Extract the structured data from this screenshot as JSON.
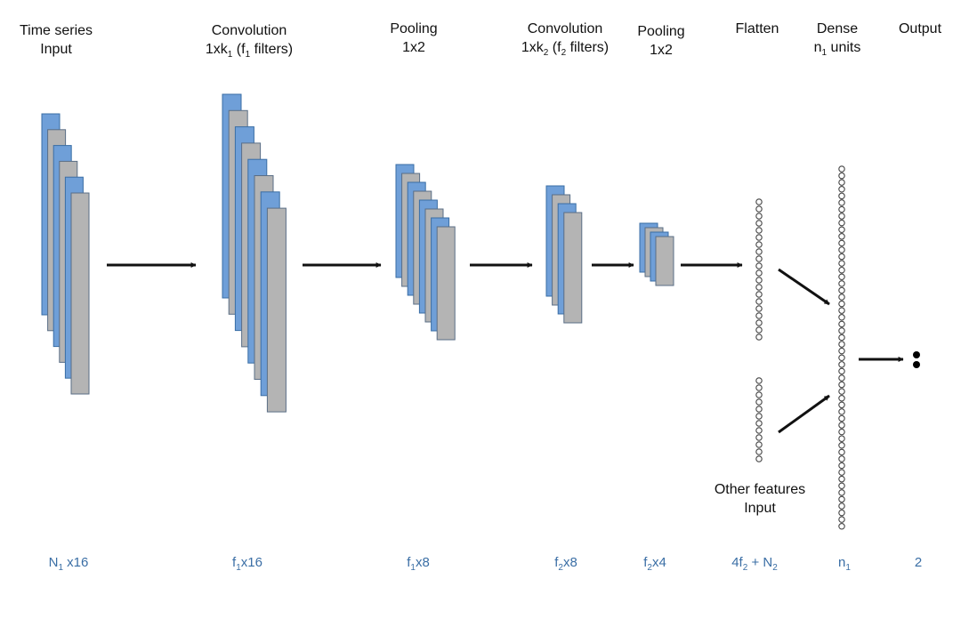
{
  "headers": {
    "input": {
      "line1": "Time series",
      "line2": "Input"
    },
    "conv1": {
      "line1": "Convolution",
      "pre": "1xk",
      "sub_k": "1",
      "mid": " (f",
      "sub_f": "1",
      "post": " filters)"
    },
    "pool1": {
      "line1": "Pooling",
      "line2": "1x2"
    },
    "conv2": {
      "line1": "Convolution",
      "pre": "1xk",
      "sub_k": "2",
      "mid": " (f",
      "sub_f": "2",
      "post": " filters)"
    },
    "pool2": {
      "line1": "Pooling",
      "line2": "1x2"
    },
    "flatten": {
      "line1": "Flatten"
    },
    "dense": {
      "line1": "Dense",
      "pre": "n",
      "sub": "1",
      "post": " units"
    },
    "output": {
      "line1": "Output"
    }
  },
  "other_features": {
    "line1": "Other features",
    "line2": "Input"
  },
  "dims": {
    "input": {
      "a": "N",
      "a_sub": "1",
      "b": " x16"
    },
    "conv1": {
      "a": "f",
      "a_sub": "1",
      "b": "x16"
    },
    "pool1": {
      "a": "f",
      "a_sub": "1",
      "b": "x8"
    },
    "conv2": {
      "a": "f",
      "a_sub": "2",
      "b": "x8"
    },
    "pool2": {
      "a": "f",
      "a_sub": "2",
      "b": "x4"
    },
    "flatten": {
      "a": "4f",
      "a_sub": "2",
      "b": " + N",
      "b_sub": "2"
    },
    "dense": {
      "a": "n",
      "a_sub": "1"
    },
    "output": {
      "a": "2"
    }
  },
  "colors": {
    "blue_fill": "#6f9fd8",
    "blue_stroke": "#3a6ea5",
    "gray_fill": "#b4b4b4",
    "gray_stroke": "#5a6e86",
    "arrow": "#111111",
    "neuron_stroke": "#444444"
  },
  "counts": {
    "input_maps": 6,
    "conv1_maps": 8,
    "pool1_maps": 8,
    "conv2_maps": 4,
    "pool2_maps": 4,
    "flatten_top_neurons": 20,
    "flatten_bottom_neurons": 12,
    "dense_neurons": 54,
    "output_neurons": 2
  }
}
